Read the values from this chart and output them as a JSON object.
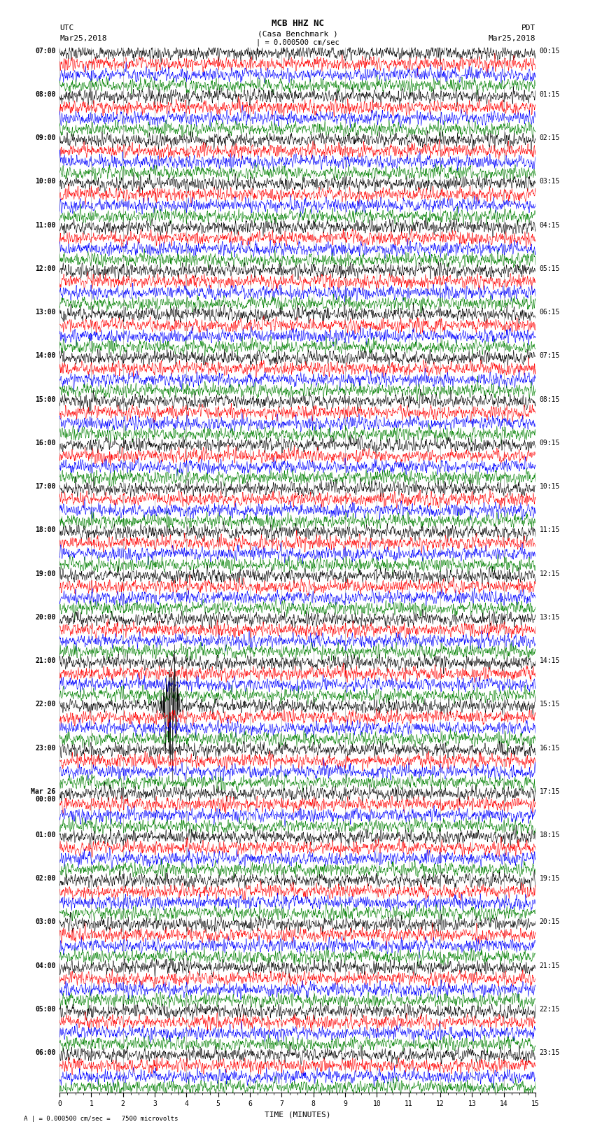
{
  "title_line1": "MCB HHZ NC",
  "title_line2": "(Casa Benchmark )",
  "title_line3": "| = 0.000500 cm/sec",
  "left_label_line1": "UTC",
  "left_label_line2": "Mar25,2018",
  "right_label_line1": "PDT",
  "right_label_line2": "Mar25,2018",
  "xlabel": "TIME (MINUTES)",
  "footer": "A | = 0.000500 cm/sec =   7500 microvolts",
  "utc_labels": [
    "07:00",
    "",
    "",
    "",
    "08:00",
    "",
    "",
    "",
    "09:00",
    "",
    "",
    "",
    "10:00",
    "",
    "",
    "",
    "11:00",
    "",
    "",
    "",
    "12:00",
    "",
    "",
    "",
    "13:00",
    "",
    "",
    "",
    "14:00",
    "",
    "",
    "",
    "15:00",
    "",
    "",
    "",
    "16:00",
    "",
    "",
    "",
    "17:00",
    "",
    "",
    "",
    "18:00",
    "",
    "",
    "",
    "19:00",
    "",
    "",
    "",
    "20:00",
    "",
    "",
    "",
    "21:00",
    "",
    "",
    "",
    "22:00",
    "",
    "",
    "",
    "23:00",
    "",
    "",
    "",
    "Mar 26\n00:00",
    "",
    "",
    "",
    "01:00",
    "",
    "",
    "",
    "02:00",
    "",
    "",
    "",
    "03:00",
    "",
    "",
    "",
    "04:00",
    "",
    "",
    "",
    "05:00",
    "",
    "",
    "",
    "06:00",
    "",
    "",
    ""
  ],
  "pdt_labels": [
    "00:15",
    "",
    "",
    "",
    "01:15",
    "",
    "",
    "",
    "02:15",
    "",
    "",
    "",
    "03:15",
    "",
    "",
    "",
    "04:15",
    "",
    "",
    "",
    "05:15",
    "",
    "",
    "",
    "06:15",
    "",
    "",
    "",
    "07:15",
    "",
    "",
    "",
    "08:15",
    "",
    "",
    "",
    "09:15",
    "",
    "",
    "",
    "10:15",
    "",
    "",
    "",
    "11:15",
    "",
    "",
    "",
    "12:15",
    "",
    "",
    "",
    "13:15",
    "",
    "",
    "",
    "14:15",
    "",
    "",
    "",
    "15:15",
    "",
    "",
    "",
    "16:15",
    "",
    "",
    "",
    "17:15",
    "",
    "",
    "",
    "18:15",
    "",
    "",
    "",
    "19:15",
    "",
    "",
    "",
    "20:15",
    "",
    "",
    "",
    "21:15",
    "",
    "",
    "",
    "22:15",
    "",
    "",
    "",
    "23:15",
    "",
    "",
    ""
  ],
  "trace_colors": [
    "black",
    "red",
    "blue",
    "green"
  ],
  "n_rows": 96,
  "n_points": 1800,
  "xlim": [
    0,
    15
  ],
  "bg_color": "white",
  "grid_color": "#aaaaaa",
  "title_fontsize": 9,
  "label_fontsize": 8,
  "tick_fontsize": 7,
  "event1_row": 60,
  "event2_row": 96,
  "event2_row_red": 97,
  "event2_row_blue": 98
}
